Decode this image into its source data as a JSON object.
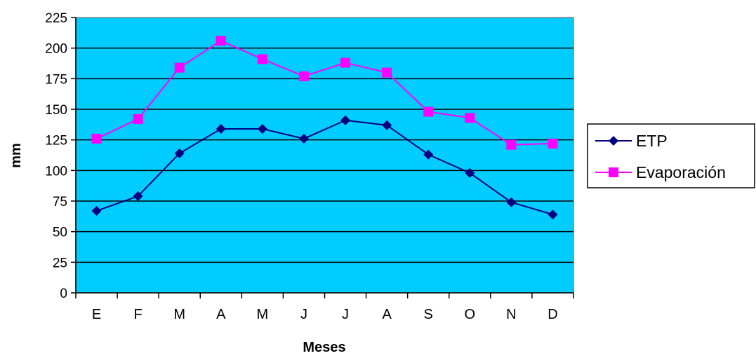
{
  "chart_data": {
    "type": "line",
    "title": "",
    "xlabel": "Meses",
    "ylabel": "mm",
    "categories": [
      "E",
      "F",
      "M",
      "A",
      "M",
      "J",
      "J",
      "A",
      "S",
      "O",
      "N",
      "D"
    ],
    "ylim": [
      0,
      225
    ],
    "yticks": [
      0,
      25,
      50,
      75,
      100,
      125,
      150,
      175,
      200,
      225
    ],
    "grid": true,
    "legend_position": "right",
    "plot_background": "#00CCFF",
    "series": [
      {
        "name": "ETP",
        "color": "#000080",
        "marker": "diamond",
        "values": [
          67,
          79,
          114,
          134,
          134,
          126,
          141,
          137,
          113,
          98,
          74,
          64
        ]
      },
      {
        "name": "Evaporación",
        "color": "#FF00FF",
        "marker": "square",
        "values": [
          126,
          142,
          184,
          206,
          191,
          177,
          188,
          180,
          148,
          143,
          121,
          122
        ]
      }
    ]
  }
}
